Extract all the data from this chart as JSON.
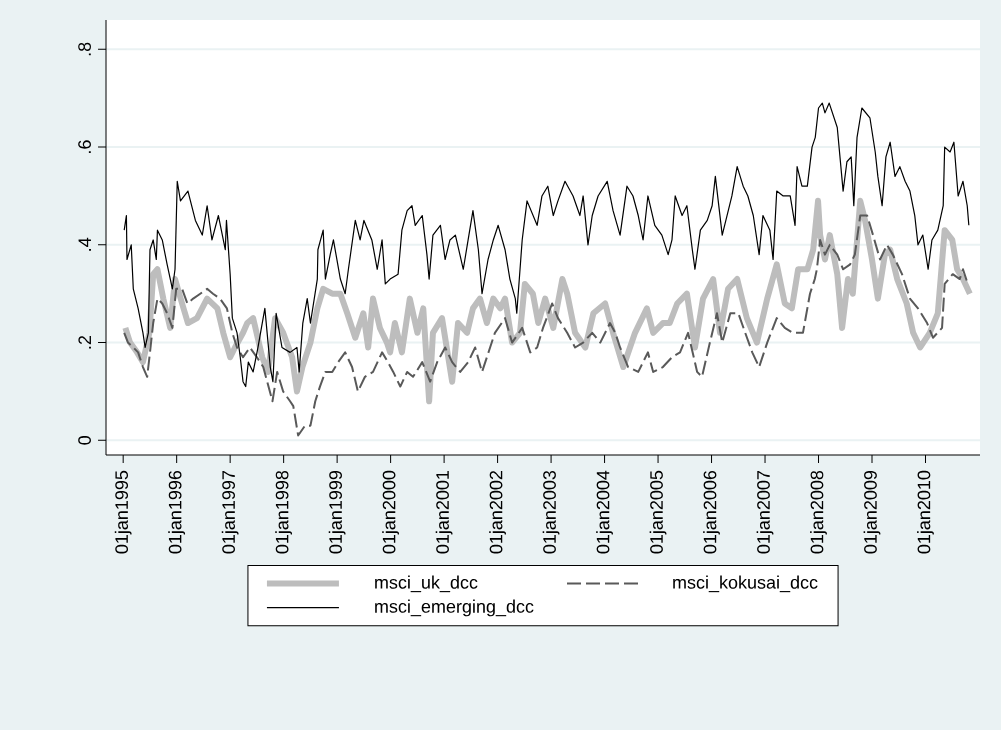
{
  "chart_data": {
    "type": "line",
    "xlim": [
      "1994-09-06",
      "2011-01-08"
    ],
    "ylim": [
      -0.03,
      0.86
    ],
    "xticks": [
      {
        "value": "1995-01-01",
        "label": "01jan1995"
      },
      {
        "value": "1996-01-01",
        "label": "01jan1996"
      },
      {
        "value": "1997-01-01",
        "label": "01jan1997"
      },
      {
        "value": "1998-01-01",
        "label": "01jan1998"
      },
      {
        "value": "1999-01-01",
        "label": "01jan1999"
      },
      {
        "value": "2000-01-01",
        "label": "01jan2000"
      },
      {
        "value": "2001-01-01",
        "label": "01jan2001"
      },
      {
        "value": "2002-01-01",
        "label": "01jan2002"
      },
      {
        "value": "2003-01-01",
        "label": "01jan2003"
      },
      {
        "value": "2004-01-01",
        "label": "01jan2004"
      },
      {
        "value": "2005-01-01",
        "label": "01jan2005"
      },
      {
        "value": "2006-01-01",
        "label": "01jan2006"
      },
      {
        "value": "2007-01-01",
        "label": "01jan2007"
      },
      {
        "value": "2008-01-01",
        "label": "01jan2008"
      },
      {
        "value": "2009-01-01",
        "label": "01jan2009"
      },
      {
        "value": "2010-01-01",
        "label": "01jan2010"
      }
    ],
    "yticks": [
      0,
      {
        "value": 0.2,
        "label": ".2"
      },
      {
        "value": 0.4,
        "label": ".4"
      },
      {
        "value": 0.6,
        "label": ".6"
      },
      {
        "value": 0.8,
        "label": ".8"
      }
    ],
    "grid": "y",
    "legend": "bottom",
    "marker": "none",
    "series": [
      {
        "name": "msci_uk_dcc",
        "color": "#bdbdbd",
        "line_style": "solid",
        "x": [
          "1995-01-16",
          "1995-02-17",
          "1995-04-06",
          "1995-05-16",
          "1995-06-29",
          "1995-07-25",
          "1995-08-23",
          "1995-10-02",
          "1995-11-18",
          "1995-12-21",
          "1996-02-07",
          "1996-03-19",
          "1996-05-20",
          "1996-07-28",
          "1996-10-06",
          "1996-11-15",
          "1997-01-01",
          "1997-02-03",
          "1997-03-30",
          "1997-04-28",
          "1997-06-07",
          "1997-08-08",
          "1997-09-17",
          "1997-11-04",
          "1997-12-29",
          "1998-02-28",
          "1998-04-02",
          "1998-05-09",
          "1998-07-03",
          "1998-08-19",
          "1998-09-28",
          "1998-11-29",
          "1999-01-23",
          "1999-03-11",
          "1999-05-05",
          "1999-06-29",
          "1999-08-01",
          "1999-09-03",
          "1999-10-20",
          "1999-12-07",
          "1999-12-29",
          "2000-01-30",
          "2000-03-19",
          "2000-05-12",
          "2000-07-03",
          "2000-08-12",
          "2000-09-21",
          "2000-10-17",
          "2000-12-18",
          "2001-02-25",
          "2001-04-06",
          "2001-06-07",
          "2001-07-17",
          "2001-09-03",
          "2001-10-20",
          "2001-12-03",
          "2002-01-19",
          "2002-02-21",
          "2002-04-10",
          "2002-06-03",
          "2002-07-06",
          "2002-08-30",
          "2002-10-06",
          "2002-11-22",
          "2003-01-16",
          "2003-03-19",
          "2003-04-21",
          "2003-06-14",
          "2003-08-23",
          "2003-10-17",
          "2004-01-05",
          "2004-02-28",
          "2004-05-09",
          "2004-07-28",
          "2004-10-17",
          "2004-11-29",
          "2005-02-03",
          "2005-03-22",
          "2005-05-12",
          "2005-07-17",
          "2005-09-10",
          "2005-11-04",
          "2006-01-12",
          "2006-02-28",
          "2006-04-24",
          "2006-06-25",
          "2006-08-30",
          "2006-11-07",
          "2007-01-16",
          "2007-03-22",
          "2007-05-16",
          "2007-07-03",
          "2007-08-15",
          "2007-10-17",
          "2007-11-26",
          "2007-12-29",
          "2008-01-12",
          "2008-02-14",
          "2008-03-19",
          "2008-05-09",
          "2008-06-11",
          "2008-07-21",
          "2008-08-23",
          "2008-10-13",
          "2008-11-15",
          "2009-01-01",
          "2009-02-10",
          "2009-03-30",
          "2009-05-05",
          "2009-06-22",
          "2009-08-26",
          "2009-10-09",
          "2009-11-26",
          "2010-01-30",
          "2010-03-26",
          "2010-05-12",
          "2010-07-03",
          "2010-08-05",
          "2010-09-14",
          "2010-10-31"
        ],
        "values": [
          0.23,
          0.2,
          0.18,
          0.16,
          0.22,
          0.34,
          0.35,
          0.29,
          0.23,
          0.33,
          0.28,
          0.24,
          0.25,
          0.29,
          0.27,
          0.22,
          0.17,
          0.19,
          0.22,
          0.24,
          0.25,
          0.17,
          0.14,
          0.25,
          0.22,
          0.17,
          0.1,
          0.15,
          0.2,
          0.27,
          0.31,
          0.3,
          0.3,
          0.26,
          0.21,
          0.26,
          0.19,
          0.29,
          0.23,
          0.2,
          0.18,
          0.24,
          0.18,
          0.29,
          0.22,
          0.27,
          0.08,
          0.22,
          0.25,
          0.12,
          0.24,
          0.22,
          0.27,
          0.29,
          0.24,
          0.29,
          0.27,
          0.29,
          0.2,
          0.22,
          0.32,
          0.3,
          0.24,
          0.29,
          0.23,
          0.33,
          0.3,
          0.22,
          0.19,
          0.26,
          0.28,
          0.22,
          0.15,
          0.22,
          0.27,
          0.22,
          0.24,
          0.24,
          0.28,
          0.3,
          0.19,
          0.29,
          0.33,
          0.22,
          0.31,
          0.33,
          0.25,
          0.2,
          0.29,
          0.36,
          0.28,
          0.27,
          0.35,
          0.35,
          0.39,
          0.49,
          0.42,
          0.37,
          0.42,
          0.34,
          0.23,
          0.33,
          0.3,
          0.49,
          0.45,
          0.37,
          0.29,
          0.38,
          0.39,
          0.33,
          0.28,
          0.22,
          0.19,
          0.22,
          0.26,
          0.43,
          0.41,
          0.35,
          0.33,
          0.3
        ]
      },
      {
        "name": "msci_kokusai_dcc",
        "color": "#595959",
        "line_style": "dashed",
        "x": [
          "1995-01-08",
          "1995-02-03",
          "1995-03-11",
          "1995-04-13",
          "1995-05-16",
          "1995-06-14",
          "1995-07-03",
          "1995-07-25",
          "1995-08-23",
          "1995-09-25",
          "1995-10-28",
          "1995-12-03",
          "1995-12-29",
          "1996-02-07",
          "1996-03-15",
          "1996-04-24",
          "1996-06-11",
          "1996-07-28",
          "1996-09-06",
          "1996-10-24",
          "1996-12-10",
          "1997-01-16",
          "1997-02-17",
          "1997-03-30",
          "1997-05-16",
          "1997-07-03",
          "1997-08-15",
          "1997-10-17",
          "1997-11-18",
          "1997-12-29",
          "1998-02-14",
          "1998-03-08",
          "1998-04-10",
          "1998-05-27",
          "1998-07-03",
          "1998-08-05",
          "1998-09-06",
          "1998-10-13",
          "1998-11-29",
          "1999-01-08",
          "1999-02-25",
          "1999-04-13",
          "1999-05-23",
          "1999-07-10",
          "1999-09-03",
          "1999-11-04",
          "1999-12-14",
          "2000-01-19",
          "2000-03-08",
          "2000-04-24",
          "2000-06-03",
          "2000-08-05",
          "2000-09-28",
          "2000-11-15",
          "2001-01-08",
          "2001-02-25",
          "2001-04-21",
          "2001-06-14",
          "2001-08-01",
          "2001-09-17",
          "2001-11-11",
          "2001-12-14",
          "2002-02-21",
          "2002-04-10",
          "2002-06-18",
          "2002-08-12",
          "2002-09-28",
          "2002-11-07",
          "2003-01-08",
          "2003-02-17",
          "2003-04-21",
          "2003-06-14",
          "2003-08-08",
          "2003-10-09",
          "2003-12-03",
          "2004-02-07",
          "2004-03-15",
          "2004-04-17",
          "2004-06-11",
          "2004-08-19",
          "2004-10-24",
          "2004-11-29",
          "2005-02-03",
          "2005-04-06",
          "2005-05-31",
          "2005-07-25",
          "2005-09-25",
          "2005-10-28",
          "2005-12-21",
          "2006-02-07",
          "2006-03-15",
          "2006-05-09",
          "2006-07-03",
          "2006-08-19",
          "2006-10-06",
          "2006-11-22",
          "2007-01-16",
          "2007-03-22",
          "2007-05-16",
          "2007-07-10",
          "2007-09-17",
          "2007-11-04",
          "2007-12-07",
          "2007-12-21",
          "2008-01-12",
          "2008-02-14",
          "2008-03-19",
          "2008-05-09",
          "2008-06-18",
          "2008-08-05",
          "2008-09-06",
          "2008-10-13",
          "2008-11-29",
          "2009-01-08",
          "2009-02-25",
          "2009-04-13",
          "2009-05-23",
          "2009-07-25",
          "2009-09-17",
          "2009-11-11",
          "2010-01-12",
          "2010-02-21",
          "2010-04-24",
          "2010-05-12",
          "2010-07-06",
          "2010-08-23",
          "2010-09-14",
          "2010-10-17"
        ],
        "values": [
          0.22,
          0.2,
          0.19,
          0.18,
          0.15,
          0.13,
          0.18,
          0.24,
          0.29,
          0.28,
          0.26,
          0.23,
          0.31,
          0.31,
          0.28,
          0.29,
          0.3,
          0.31,
          0.3,
          0.29,
          0.27,
          0.22,
          0.19,
          0.17,
          0.19,
          0.17,
          0.15,
          0.08,
          0.14,
          0.1,
          0.08,
          0.07,
          0.01,
          0.03,
          0.03,
          0.08,
          0.11,
          0.14,
          0.14,
          0.16,
          0.18,
          0.15,
          0.1,
          0.13,
          0.14,
          0.18,
          0.16,
          0.14,
          0.11,
          0.14,
          0.13,
          0.16,
          0.12,
          0.16,
          0.19,
          0.16,
          0.14,
          0.16,
          0.19,
          0.14,
          0.19,
          0.22,
          0.25,
          0.2,
          0.23,
          0.18,
          0.19,
          0.23,
          0.28,
          0.25,
          0.22,
          0.19,
          0.2,
          0.22,
          0.2,
          0.24,
          0.22,
          0.19,
          0.15,
          0.14,
          0.18,
          0.14,
          0.15,
          0.17,
          0.18,
          0.22,
          0.14,
          0.13,
          0.2,
          0.26,
          0.2,
          0.26,
          0.26,
          0.22,
          0.18,
          0.15,
          0.2,
          0.25,
          0.23,
          0.22,
          0.22,
          0.3,
          0.33,
          0.35,
          0.41,
          0.38,
          0.4,
          0.38,
          0.35,
          0.36,
          0.38,
          0.46,
          0.46,
          0.42,
          0.37,
          0.4,
          0.38,
          0.34,
          0.29,
          0.27,
          0.24,
          0.21,
          0.23,
          0.32,
          0.34,
          0.33,
          0.35,
          0.32
        ]
      },
      {
        "name": "msci_emerging_dcc",
        "color": "#000000",
        "line_style": "solid",
        "x": [
          "1995-01-08",
          "1995-01-23",
          "1995-01-27",
          "1995-02-25",
          "1995-03-11",
          "1995-04-13",
          "1995-05-16",
          "1995-05-31",
          "1995-06-22",
          "1995-07-03",
          "1995-07-25",
          "1995-08-15",
          "1995-08-23",
          "1995-09-25",
          "1995-10-28",
          "1995-12-03",
          "1995-12-21",
          "1996-01-05",
          "1996-01-27",
          "1996-03-19",
          "1996-05-09",
          "1996-06-25",
          "1996-07-28",
          "1996-08-30",
          "1996-10-13",
          "1996-11-29",
          "1996-12-07",
          "1997-01-01",
          "1997-01-16",
          "1997-02-17",
          "1997-03-11",
          "1997-03-30",
          "1997-04-17",
          "1997-05-05",
          "1997-06-07",
          "1997-07-10",
          "1997-08-26",
          "1997-10-02",
          "1997-10-20",
          "1997-11-11",
          "1997-12-21",
          "1998-02-14",
          "1998-04-02",
          "1998-04-17",
          "1998-05-12",
          "1998-06-11",
          "1998-07-03",
          "1998-08-19",
          "1998-08-23",
          "1998-09-28",
          "1998-10-13",
          "1998-11-15",
          "1998-12-07",
          "1999-01-23",
          "1999-02-25",
          "1999-03-19",
          "1999-05-05",
          "1999-06-07",
          "1999-07-03",
          "1999-08-26",
          "1999-10-02",
          "1999-11-04",
          "1999-11-26",
          "1999-12-29",
          "2000-02-21",
          "2000-03-19",
          "2000-04-24",
          "2000-05-27",
          "2000-06-18",
          "2000-08-05",
          "2000-09-06",
          "2000-09-21",
          "2000-10-17",
          "2000-12-07",
          "2001-01-08",
          "2001-02-10",
          "2001-03-19",
          "2001-05-12",
          "2001-06-14",
          "2001-07-17",
          "2001-08-23",
          "2001-09-17",
          "2001-10-28",
          "2001-12-03",
          "2002-01-05",
          "2002-02-21",
          "2002-03-26",
          "2002-05-02",
          "2002-05-12",
          "2002-06-18",
          "2002-07-21",
          "2002-09-28",
          "2002-10-31",
          "2002-12-10",
          "2003-01-16",
          "2003-02-17",
          "2003-04-06",
          "2003-05-31",
          "2003-07-17",
          "2003-08-08",
          "2003-09-10",
          "2003-10-09",
          "2003-11-18",
          "2004-01-19",
          "2004-02-28",
          "2004-04-17",
          "2004-06-03",
          "2004-07-14",
          "2004-08-19",
          "2004-09-21",
          "2004-10-24",
          "2004-12-10",
          "2005-01-27",
          "2005-03-11",
          "2005-04-06",
          "2005-04-28",
          "2005-06-14",
          "2005-07-17",
          "2005-08-23",
          "2005-09-10",
          "2005-10-17",
          "2005-12-03",
          "2006-01-05",
          "2006-01-27",
          "2006-03-15",
          "2006-04-17",
          "2006-05-20",
          "2006-06-25",
          "2006-08-05",
          "2006-09-06",
          "2006-10-13",
          "2006-11-22",
          "2006-12-18",
          "2007-02-03",
          "2007-02-25",
          "2007-03-22",
          "2007-05-05",
          "2007-06-22",
          "2007-07-25",
          "2007-08-08",
          "2007-09-10",
          "2007-10-17",
          "2007-11-18",
          "2007-12-10",
          "2008-01-01",
          "2008-01-27",
          "2008-02-14",
          "2008-03-15",
          "2008-05-09",
          "2008-06-18",
          "2008-07-14",
          "2008-08-12",
          "2008-08-30",
          "2008-09-21",
          "2008-10-24",
          "2008-12-18",
          "2009-01-23",
          "2009-02-10",
          "2009-03-11",
          "2009-04-06",
          "2009-05-05",
          "2009-06-07",
          "2009-07-10",
          "2009-08-15",
          "2009-09-17",
          "2009-10-20",
          "2009-11-11",
          "2009-12-14",
          "2010-01-19",
          "2010-02-14",
          "2010-03-26",
          "2010-05-02",
          "2010-05-12",
          "2010-06-18",
          "2010-07-14",
          "2010-08-12",
          "2010-09-14",
          "2010-10-13",
          "2010-10-24"
        ],
        "values": [
          0.43,
          0.46,
          0.37,
          0.4,
          0.31,
          0.27,
          0.22,
          0.19,
          0.22,
          0.39,
          0.41,
          0.37,
          0.43,
          0.41,
          0.36,
          0.31,
          0.35,
          0.53,
          0.49,
          0.51,
          0.45,
          0.42,
          0.48,
          0.41,
          0.46,
          0.39,
          0.45,
          0.34,
          0.25,
          0.22,
          0.17,
          0.12,
          0.11,
          0.16,
          0.14,
          0.19,
          0.27,
          0.15,
          0.12,
          0.26,
          0.19,
          0.18,
          0.19,
          0.14,
          0.24,
          0.29,
          0.24,
          0.33,
          0.39,
          0.43,
          0.33,
          0.38,
          0.41,
          0.33,
          0.3,
          0.35,
          0.45,
          0.41,
          0.45,
          0.41,
          0.35,
          0.41,
          0.32,
          0.33,
          0.34,
          0.43,
          0.47,
          0.48,
          0.44,
          0.46,
          0.38,
          0.33,
          0.42,
          0.44,
          0.37,
          0.41,
          0.42,
          0.35,
          0.41,
          0.47,
          0.39,
          0.3,
          0.37,
          0.41,
          0.44,
          0.39,
          0.33,
          0.29,
          0.26,
          0.41,
          0.49,
          0.44,
          0.5,
          0.52,
          0.46,
          0.49,
          0.53,
          0.5,
          0.46,
          0.5,
          0.4,
          0.46,
          0.5,
          0.53,
          0.47,
          0.42,
          0.52,
          0.5,
          0.46,
          0.41,
          0.5,
          0.44,
          0.42,
          0.38,
          0.41,
          0.5,
          0.46,
          0.48,
          0.39,
          0.35,
          0.43,
          0.45,
          0.48,
          0.54,
          0.42,
          0.46,
          0.5,
          0.56,
          0.52,
          0.5,
          0.46,
          0.38,
          0.46,
          0.43,
          0.37,
          0.51,
          0.5,
          0.5,
          0.44,
          0.56,
          0.52,
          0.52,
          0.6,
          0.62,
          0.68,
          0.69,
          0.67,
          0.69,
          0.64,
          0.51,
          0.57,
          0.58,
          0.48,
          0.62,
          0.68,
          0.66,
          0.59,
          0.54,
          0.48,
          0.58,
          0.61,
          0.54,
          0.56,
          0.53,
          0.51,
          0.46,
          0.4,
          0.42,
          0.35,
          0.41,
          0.43,
          0.48,
          0.6,
          0.59,
          0.61,
          0.5,
          0.53,
          0.48,
          0.44
        ]
      }
    ]
  }
}
